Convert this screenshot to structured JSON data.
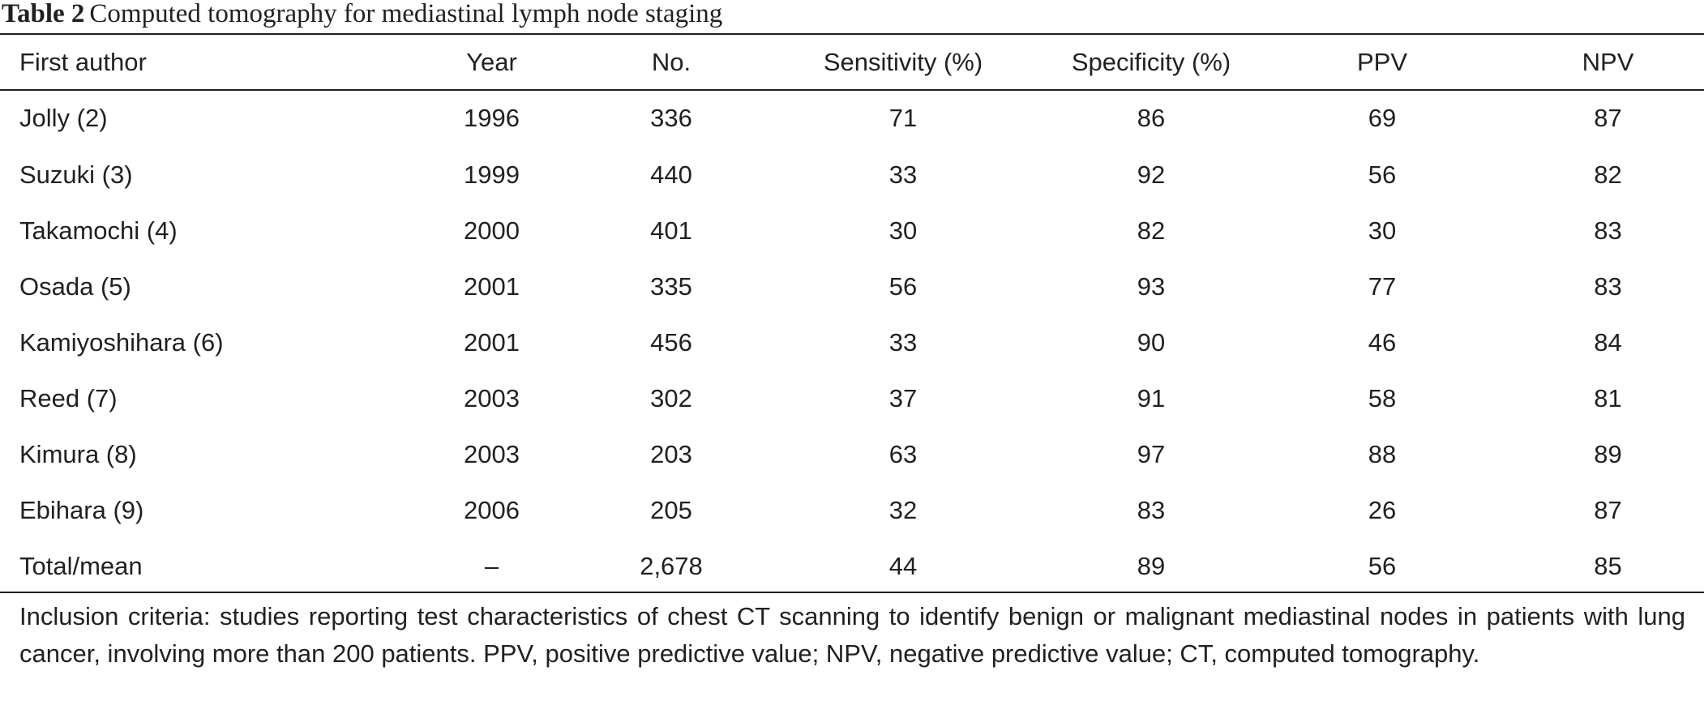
{
  "caption": {
    "label": "Table 2",
    "title": "Computed tomography for mediastinal lymph node staging"
  },
  "columns": [
    "First author",
    "Year",
    "No.",
    "Sensitivity (%)",
    "Specificity (%)",
    "PPV",
    "NPV"
  ],
  "rows": [
    [
      "Jolly (2)",
      "1996",
      "336",
      "71",
      "86",
      "69",
      "87"
    ],
    [
      "Suzuki (3)",
      "1999",
      "440",
      "33",
      "92",
      "56",
      "82"
    ],
    [
      "Takamochi (4)",
      "2000",
      "401",
      "30",
      "82",
      "30",
      "83"
    ],
    [
      "Osada (5)",
      "2001",
      "335",
      "56",
      "93",
      "77",
      "83"
    ],
    [
      "Kamiyoshihara (6)",
      "2001",
      "456",
      "33",
      "90",
      "46",
      "84"
    ],
    [
      "Reed (7)",
      "2003",
      "302",
      "37",
      "91",
      "58",
      "81"
    ],
    [
      "Kimura (8)",
      "2003",
      "203",
      "63",
      "97",
      "88",
      "89"
    ],
    [
      "Ebihara (9)",
      "2006",
      "205",
      "32",
      "83",
      "26",
      "87"
    ],
    [
      "Total/mean",
      "–",
      "2,678",
      "44",
      "89",
      "56",
      "85"
    ]
  ],
  "footnote": "Inclusion criteria: studies reporting test characteristics of chest CT scanning to identify benign or malignant mediastinal nodes in patients with lung cancer, involving more than 200 patients. PPV, positive predictive value; NPV, negative predictive value; CT, computed tomography."
}
